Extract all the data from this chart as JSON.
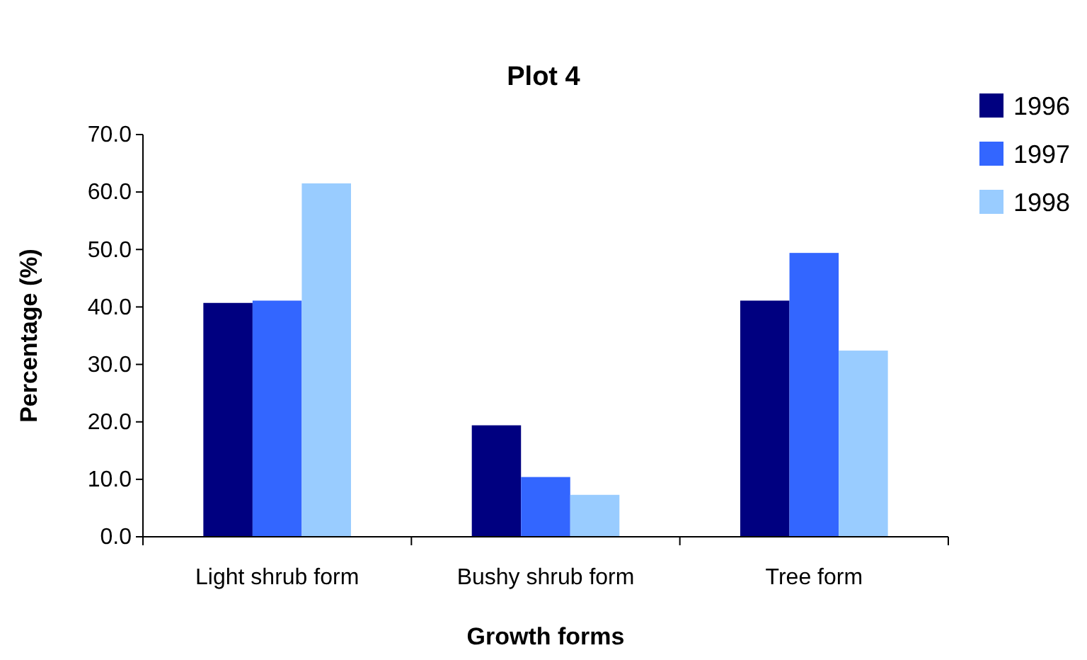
{
  "chart_data": {
    "type": "bar",
    "title": "Plot 4",
    "xlabel": "Growth forms",
    "ylabel": "Percentage (%)",
    "categories": [
      "Light shrub form",
      "Bushy shrub form",
      "Tree form"
    ],
    "series": [
      {
        "name": "1996",
        "color": "#000080",
        "values": [
          40.7,
          19.4,
          41.1
        ]
      },
      {
        "name": "1997",
        "color": "#3366ff",
        "values": [
          41.1,
          10.4,
          49.4
        ]
      },
      {
        "name": "1998",
        "color": "#99ccff",
        "values": [
          61.5,
          7.3,
          32.4
        ]
      }
    ],
    "ylim": [
      0,
      70
    ],
    "yticks": [
      {
        "value": 0,
        "label": "0.0"
      },
      {
        "value": 10,
        "label": "10.0"
      },
      {
        "value": 20,
        "label": "20.0"
      },
      {
        "value": 30,
        "label": "30.0"
      },
      {
        "value": 40,
        "label": "40.0"
      },
      {
        "value": 50,
        "label": "50.0"
      },
      {
        "value": 60,
        "label": "60.0"
      },
      {
        "value": 70,
        "label": "70.0"
      }
    ],
    "grid": false,
    "legend": "top right"
  }
}
